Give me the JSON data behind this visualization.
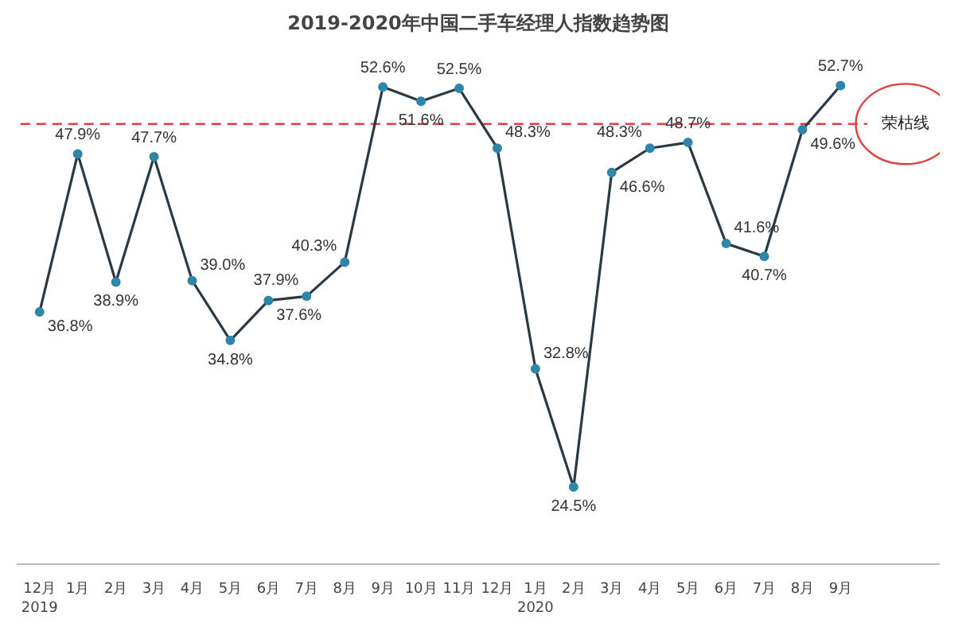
{
  "chart_data": {
    "type": "line",
    "title": "2019-2020年中国二手车经理人指数趋势图",
    "categories": [
      "12月\n2019",
      "1月",
      "2月",
      "3月",
      "4月",
      "5月",
      "6月",
      "7月",
      "8月",
      "9月",
      "10月",
      "11月",
      "12月",
      "1月\n2020",
      "2月",
      "3月",
      "4月",
      "5月",
      "6月",
      "7月",
      "8月",
      "9月"
    ],
    "series": [
      {
        "color": "#2b3a42",
        "values": [
          36.8,
          47.9,
          38.9,
          47.7,
          39.0,
          34.8,
          37.6,
          37.9,
          40.3,
          52.6,
          51.6,
          52.5,
          48.3,
          32.8,
          24.5,
          46.6,
          48.3,
          48.7,
          41.6,
          40.7,
          49.6,
          52.7
        ],
        "value_labels": [
          "36.8%",
          "47.9%",
          "38.9%",
          "47.7%",
          "39.0%",
          "34.8%",
          "37.6%",
          "37.9%",
          "40.3%",
          "52.6%",
          "51.6%",
          "52.5%",
          "48.3%",
          "32.8%",
          "24.5%",
          "46.6%",
          "48.3%",
          "48.7%",
          "41.6%",
          "40.7%",
          "49.6%",
          "52.7%"
        ]
      }
    ],
    "marker": "circle",
    "line_style": "solid",
    "grid": false,
    "tick_labels": "x",
    "ref_lines": [
      {
        "axis": "y",
        "value": 50,
        "label": "荣枯线",
        "color": "#e0403a",
        "line_style": "dashed"
      }
    ]
  }
}
